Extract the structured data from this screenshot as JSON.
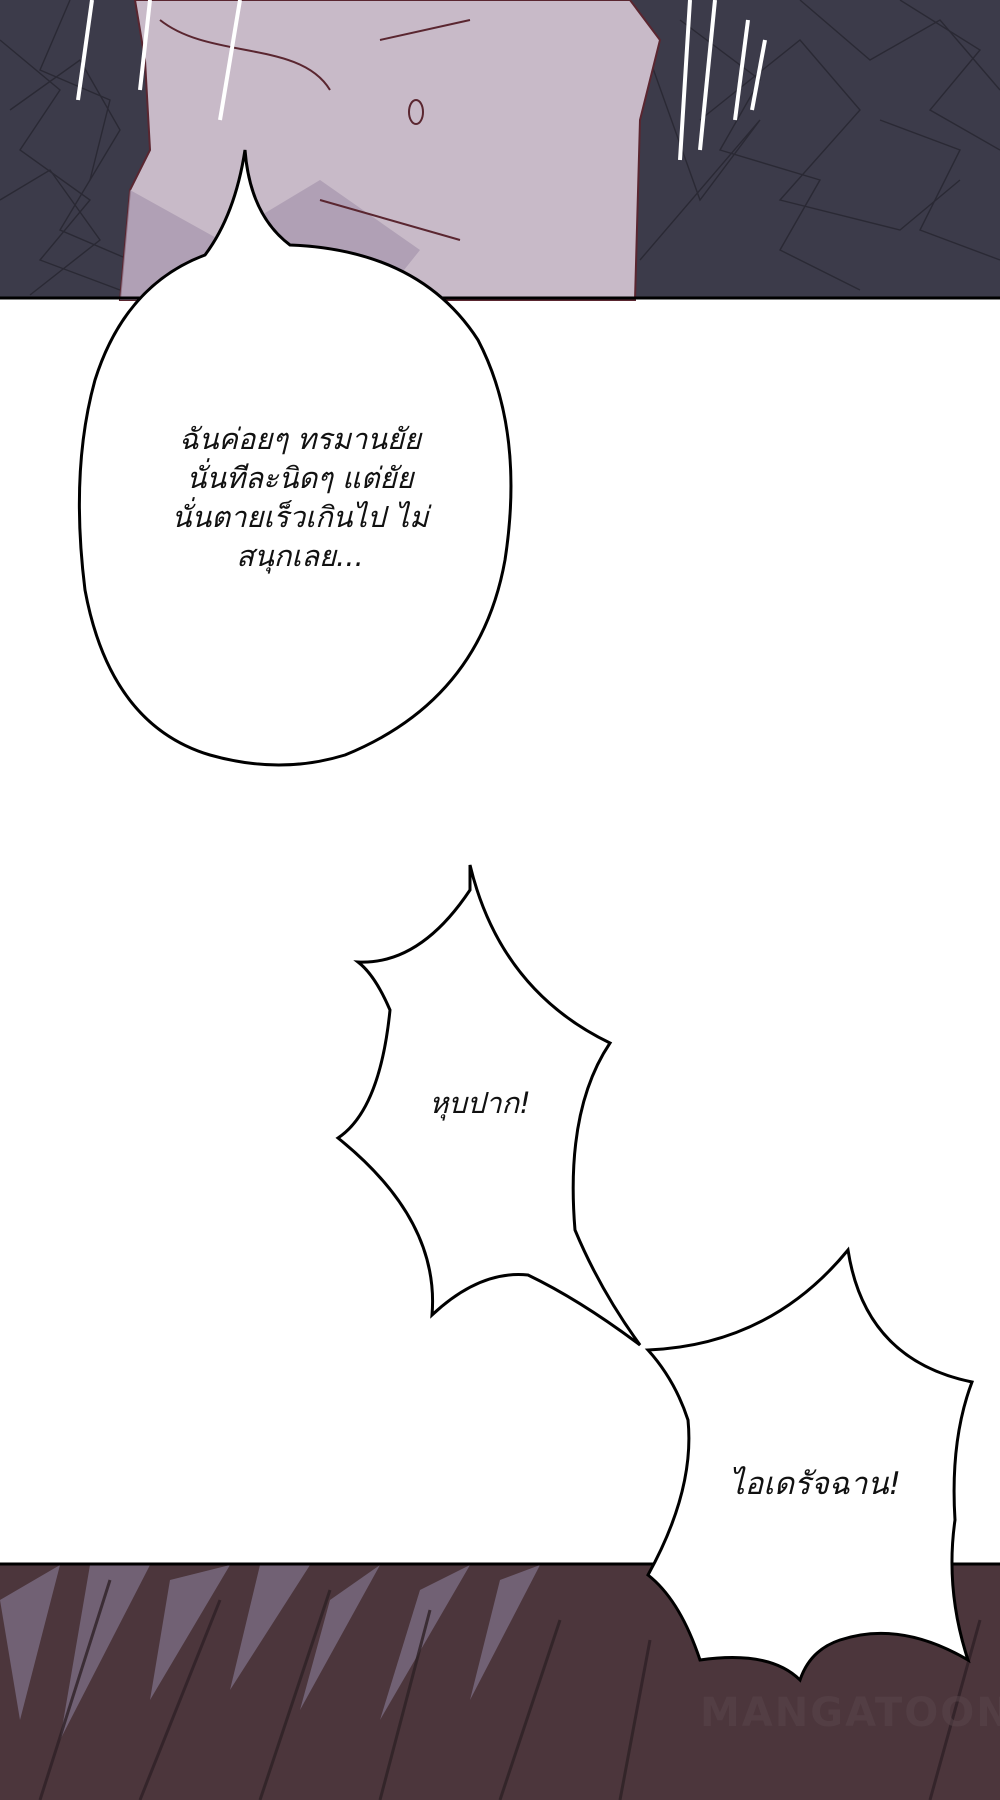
{
  "bubbles": {
    "speech_round": {
      "lines": [
        "ฉันค่อยๆ ทรมานยัย",
        "นั่นทีละนิดๆ แต่ยัย",
        "นั่นตายเร็วเกินไป ไม่",
        "สนุกเลย..."
      ]
    },
    "shout_top": {
      "text": "หุบปาก!"
    },
    "shout_bottom": {
      "text": "ไอเดรัจฉาน!"
    }
  },
  "watermark": {
    "text": "MANGATOON"
  },
  "colors": {
    "top_panel_bg": "#3e3d4c",
    "shirt": "#c9bcc9",
    "bottom_panel_bg": "#4f393e",
    "bubble_fill": "#ffffff",
    "bubble_stroke": "#000000"
  }
}
